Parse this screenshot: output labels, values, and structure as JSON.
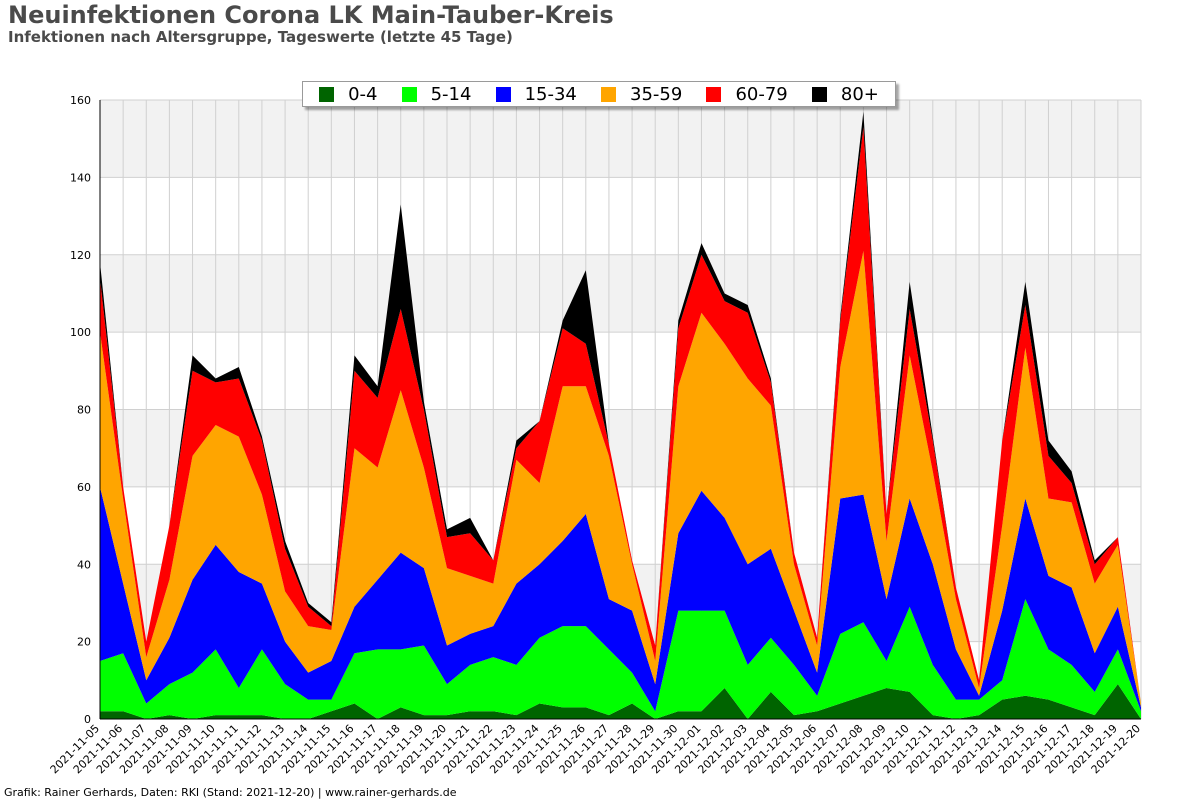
{
  "header": {
    "title": "Neuinfektionen Corona LK Main-Tauber-Kreis",
    "subtitle": "Infektionen nach Altersgruppe, Tageswerte (letzte 45 Tage)"
  },
  "footer": "Grafik: Rainer Gerhards, Daten: RKI (Stand: 2021-12-20) | www.rainer-gerhards.de",
  "chart_data": {
    "type": "area",
    "stacked": true,
    "ylim": [
      0,
      160
    ],
    "yticks": [
      0,
      20,
      40,
      60,
      80,
      100,
      120,
      140,
      160
    ],
    "grid": true,
    "band_color": "#f2f2f2",
    "legend_position": "top-center",
    "x": [
      "2021-11-05",
      "2021-11-06",
      "2021-11-07",
      "2021-11-08",
      "2021-11-09",
      "2021-11-10",
      "2021-11-11",
      "2021-11-12",
      "2021-11-13",
      "2021-11-14",
      "2021-11-15",
      "2021-11-16",
      "2021-11-17",
      "2021-11-18",
      "2021-11-19",
      "2021-11-20",
      "2021-11-21",
      "2021-11-22",
      "2021-11-23",
      "2021-11-24",
      "2021-11-25",
      "2021-11-26",
      "2021-11-27",
      "2021-11-28",
      "2021-11-29",
      "2021-11-30",
      "2021-12-01",
      "2021-12-02",
      "2021-12-03",
      "2021-12-04",
      "2021-12-05",
      "2021-12-06",
      "2021-12-07",
      "2021-12-08",
      "2021-12-09",
      "2021-12-10",
      "2021-12-11",
      "2021-12-12",
      "2021-12-13",
      "2021-12-14",
      "2021-12-15",
      "2021-12-16",
      "2021-12-17",
      "2021-12-18",
      "2021-12-19",
      "2021-12-20"
    ],
    "series": [
      {
        "name": "0-4",
        "color": "#006400",
        "values": [
          2,
          2,
          0,
          1,
          0,
          1,
          1,
          1,
          0,
          0,
          2,
          4,
          0,
          3,
          1,
          1,
          2,
          2,
          1,
          4,
          3,
          3,
          1,
          4,
          0,
          2,
          2,
          8,
          0,
          7,
          1,
          2,
          4,
          6,
          8,
          7,
          1,
          0,
          1,
          5,
          6,
          5,
          3,
          1,
          9,
          0
        ]
      },
      {
        "name": "5-14",
        "color": "#00ff00",
        "values": [
          13,
          15,
          4,
          8,
          12,
          17,
          7,
          17,
          9,
          5,
          3,
          13,
          18,
          15,
          18,
          8,
          12,
          14,
          13,
          17,
          21,
          21,
          17,
          8,
          2,
          26,
          26,
          20,
          14,
          14,
          13,
          4,
          18,
          19,
          7,
          22,
          13,
          5,
          4,
          5,
          25,
          13,
          11,
          6,
          9,
          2
        ]
      },
      {
        "name": "15-34",
        "color": "#0000ff",
        "values": [
          45,
          18,
          6,
          12,
          24,
          27,
          30,
          17,
          11,
          7,
          10,
          12,
          18,
          25,
          20,
          10,
          8,
          8,
          21,
          19,
          22,
          29,
          13,
          16,
          7,
          20,
          31,
          24,
          26,
          23,
          14,
          6,
          35,
          33,
          16,
          28,
          26,
          13,
          1,
          18,
          26,
          19,
          20,
          10,
          11,
          1
        ]
      },
      {
        "name": "35-59",
        "color": "#ffa500",
        "values": [
          40,
          22,
          6,
          15,
          32,
          31,
          35,
          23,
          13,
          12,
          8,
          41,
          29,
          42,
          26,
          20,
          15,
          11,
          32,
          21,
          40,
          33,
          37,
          12,
          6,
          38,
          46,
          45,
          48,
          37,
          12,
          7,
          34,
          63,
          15,
          37,
          24,
          13,
          2,
          22,
          39,
          20,
          22,
          18,
          16,
          1
        ]
      },
      {
        "name": "60-79",
        "color": "#ff0000",
        "values": [
          14,
          3,
          4,
          14,
          22,
          11,
          15,
          14,
          11,
          5,
          1,
          20,
          18,
          21,
          15,
          8,
          11,
          6,
          3,
          16,
          15,
          11,
          3,
          1,
          4,
          15,
          15,
          11,
          17,
          6,
          3,
          2,
          12,
          32,
          7,
          12,
          8,
          3,
          2,
          22,
          11,
          11,
          5,
          5,
          2,
          0
        ]
      },
      {
        "name": "80+",
        "color": "#000000",
        "values": [
          4,
          0,
          0,
          0,
          4,
          1,
          3,
          1,
          2,
          1,
          1,
          4,
          3,
          27,
          2,
          2,
          4,
          0,
          2,
          0,
          2,
          19,
          0,
          0,
          0,
          2,
          3,
          2,
          2,
          1,
          0,
          0,
          1,
          4,
          0,
          7,
          1,
          0,
          0,
          0,
          6,
          4,
          3,
          1,
          0,
          0
        ]
      }
    ]
  }
}
